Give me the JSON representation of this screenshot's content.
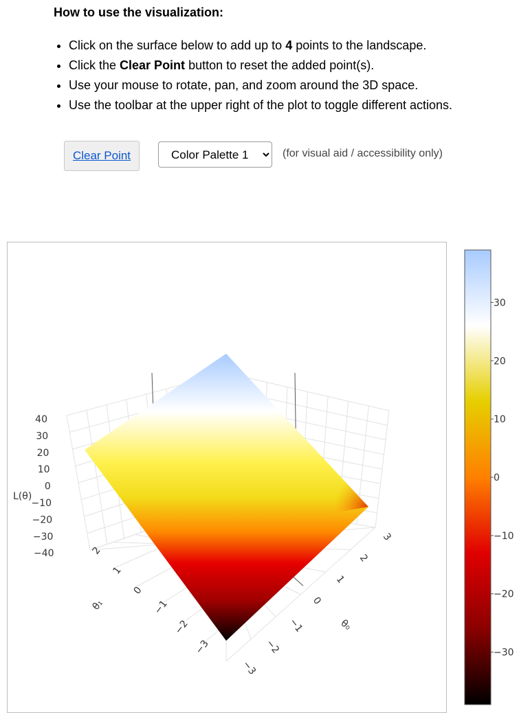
{
  "instructions": {
    "heading": "How to use the visualization:",
    "items": [
      {
        "pre": "Click on the surface below to add up to ",
        "bold": "4",
        "post": " points to the landscape."
      },
      {
        "pre": "Click the ",
        "bold": "Clear Point",
        "post": " button to reset the added point(s)."
      },
      {
        "pre": "Use your mouse to rotate, pan, and zoom around the 3D space.",
        "bold": "",
        "post": ""
      },
      {
        "pre": "Use the toolbar at the upper right of the plot to toggle different actions.",
        "bold": "",
        "post": ""
      }
    ]
  },
  "controls": {
    "clear_label": "Clear Point",
    "palette_selected": "Color Palette 1",
    "note": "(for visual aid / accessibility only)"
  },
  "chart_data": {
    "type": "surface",
    "title": "",
    "xlabel": "θ₀",
    "ylabel": "θ₁",
    "zlabel": "L(θ)",
    "x_ticks": [
      "−3",
      "−2",
      "−1",
      "0",
      "1",
      "2",
      "3"
    ],
    "y_ticks": [
      "−3",
      "−2",
      "−1",
      "0",
      "1",
      "2"
    ],
    "z_ticks": [
      "40",
      "30",
      "20",
      "10",
      "0",
      "−10",
      "−20",
      "−30",
      "−40"
    ],
    "xlim": [
      -3,
      3
    ],
    "ylim": [
      -3,
      3
    ],
    "zlim": [
      -40,
      40
    ],
    "corners": [
      {
        "x": -3,
        "y": -3,
        "z": -38
      },
      {
        "x": 3,
        "y": -3,
        "z": -8
      },
      {
        "x": 3,
        "y": 3,
        "z": 38
      },
      {
        "x": -3,
        "y": 3,
        "z": 8
      }
    ],
    "colorbar": {
      "ticks": [
        "30",
        "20",
        "10",
        "0",
        "−10",
        "−20",
        "−30"
      ],
      "tick_values": [
        30,
        20,
        10,
        0,
        -10,
        -20,
        -30
      ],
      "range": [
        -39,
        39
      ],
      "stops": [
        "#000000",
        "#8b0000",
        "#e00000",
        "#ff8000",
        "#e6cf00",
        "#ffffff",
        "#a8cbff"
      ]
    }
  }
}
